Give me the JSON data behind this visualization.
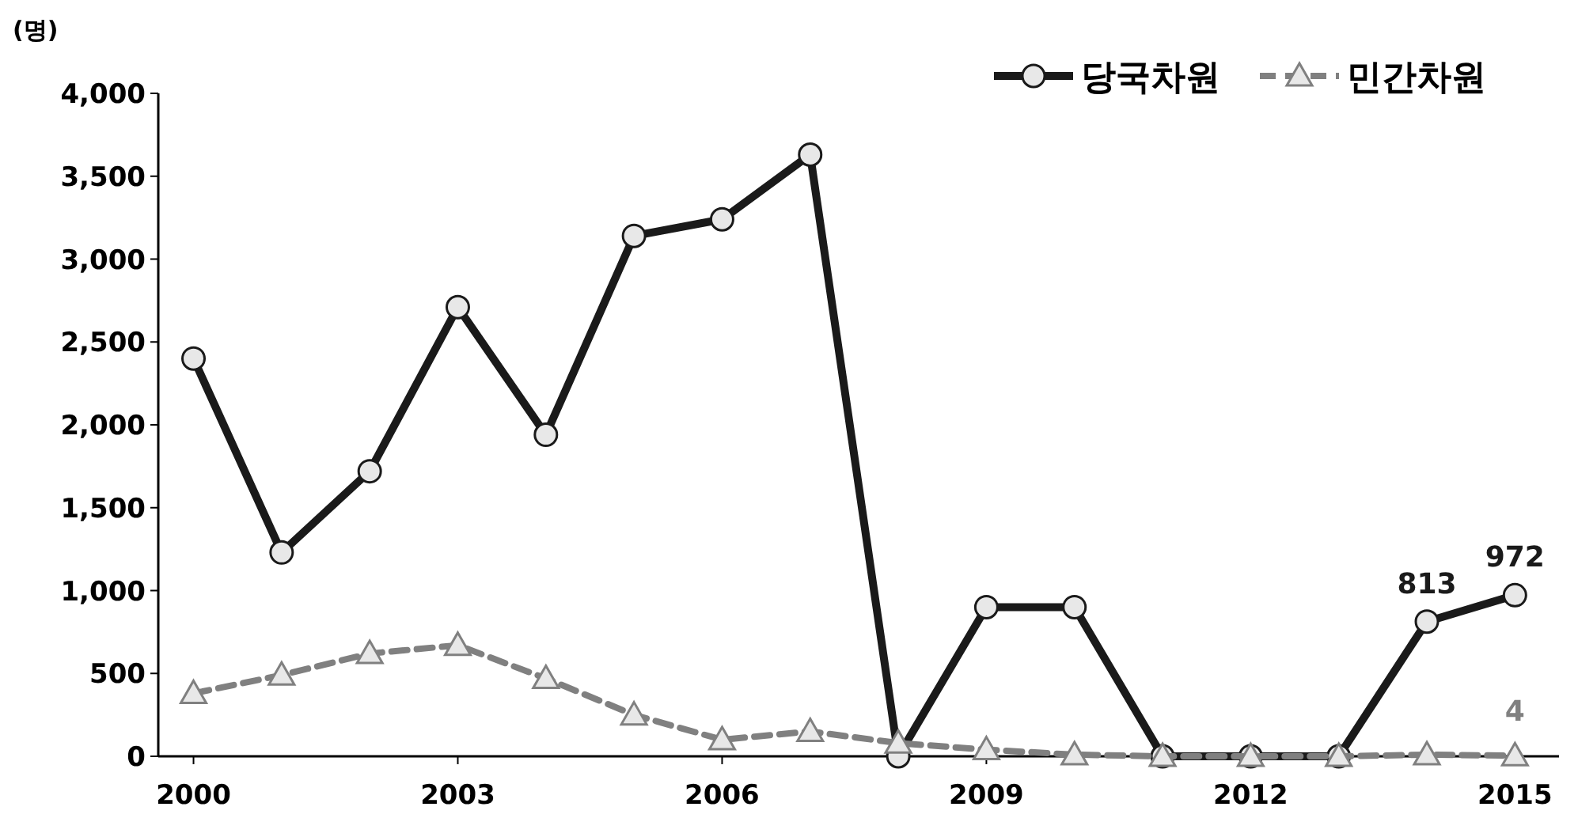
{
  "chart_data": {
    "type": "line",
    "ylabel": "(명)",
    "x": [
      2000,
      2001,
      2002,
      2003,
      2004,
      2005,
      2006,
      2007,
      2008,
      2009,
      2010,
      2011,
      2012,
      2013,
      2014,
      2015
    ],
    "xlim": [
      1999.6,
      2015.5
    ],
    "xticks": [
      2000,
      2003,
      2006,
      2009,
      2012,
      2015
    ],
    "ylim": [
      0,
      4000
    ],
    "yticks": [
      {
        "value": 0,
        "label": "0"
      },
      {
        "value": 500,
        "label": "500"
      },
      {
        "value": 1000,
        "label": "1,000"
      },
      {
        "value": 1500,
        "label": "1,500"
      },
      {
        "value": 2000,
        "label": "2,000"
      },
      {
        "value": 2500,
        "label": "2,500"
      },
      {
        "value": 3000,
        "label": "3,000"
      },
      {
        "value": 3500,
        "label": "3,500"
      },
      {
        "value": 4000,
        "label": "4,000"
      }
    ],
    "legend": "top right",
    "grid": false,
    "series": [
      {
        "name": "당국차원",
        "color": "#1a1a1a",
        "marker": "circle",
        "line_style": "solid",
        "values": [
          2400,
          1230,
          1720,
          2710,
          1940,
          3140,
          3240,
          3630,
          0,
          900,
          900,
          0,
          0,
          0,
          813,
          972
        ],
        "value_labels": [
          null,
          null,
          null,
          null,
          null,
          null,
          null,
          null,
          null,
          null,
          null,
          null,
          null,
          null,
          "813",
          "972"
        ]
      },
      {
        "name": "민간차원",
        "color": "#808080",
        "marker": "triangle",
        "line_style": "dashed",
        "values": [
          380,
          490,
          620,
          670,
          470,
          250,
          100,
          150,
          80,
          40,
          10,
          0,
          0,
          0,
          10,
          4
        ],
        "value_labels": [
          null,
          null,
          null,
          null,
          null,
          null,
          null,
          null,
          null,
          null,
          null,
          null,
          null,
          null,
          null,
          "4"
        ]
      }
    ]
  }
}
